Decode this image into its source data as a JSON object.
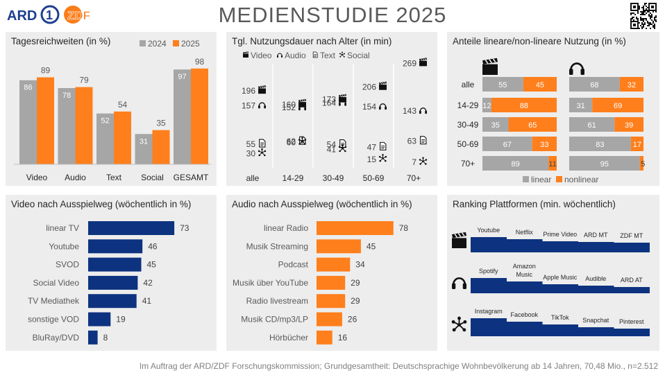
{
  "header": {
    "title": "MEDIENSTUDIE 2025",
    "logo_ard": "ARD",
    "logo_zdf": "ZDF"
  },
  "footer": "Im Auftrag der ARD/ZDF Forschungskommission; Grundgesamtheit: Deutschsprachige Wohnbevölkerung ab 14 Jahren, 70,48 Mio., n=2.512",
  "colors": {
    "orange": "#ff7f1c",
    "gray": "#a6a6a6",
    "navy": "#0d3380",
    "panel": "#ededed"
  },
  "chart_data": [
    {
      "id": "tagesreichweiten",
      "type": "bar",
      "title": "Tagesreichweiten (in %)",
      "categories": [
        "Video",
        "Audio",
        "Text",
        "Social",
        "GESAMT"
      ],
      "series": [
        {
          "name": "2024",
          "values": [
            86,
            78,
            52,
            31,
            97
          ]
        },
        {
          "name": "2025",
          "values": [
            89,
            79,
            54,
            35,
            98
          ]
        }
      ],
      "ylim": [
        0,
        100
      ],
      "legend": "top-right"
    },
    {
      "id": "nutzungsdauer",
      "type": "scatter",
      "title": "Tgl. Nutzungsdauer nach Alter (in min)",
      "categories": [
        "alle",
        "14-29",
        "30-49",
        "50-69",
        "70+"
      ],
      "series": [
        {
          "name": "Video",
          "icon": "clapperboard-icon",
          "values": [
            196,
            160,
            173,
            206,
            269
          ]
        },
        {
          "name": "Audio",
          "icon": "headphones-icon",
          "values": [
            157,
            152,
            164,
            154,
            143
          ]
        },
        {
          "name": "Text",
          "icon": "document-icon",
          "values": [
            55,
            62,
            54,
            47,
            63
          ]
        },
        {
          "name": "Social",
          "icon": "social-icon",
          "values": [
            30,
            60,
            41,
            15,
            7
          ]
        }
      ],
      "legend": "top"
    },
    {
      "id": "anteile",
      "type": "bar",
      "title": "Anteile lineare/non-lineare Nutzung (in %)",
      "categories": [
        "alle",
        "14-29",
        "30-49",
        "50-69",
        "70+"
      ],
      "groups": [
        {
          "icon": "clapperboard-icon",
          "linear": [
            55,
            12,
            35,
            67,
            89
          ],
          "nonlinear": [
            45,
            88,
            65,
            33,
            11
          ]
        },
        {
          "icon": "headphones-icon",
          "linear": [
            68,
            31,
            61,
            83,
            95
          ],
          "nonlinear": [
            32,
            69,
            39,
            17,
            5
          ]
        }
      ],
      "series_names": [
        "linear",
        "nonlinear"
      ],
      "stacked": true,
      "legend": "bottom"
    },
    {
      "id": "video_ausspielweg",
      "type": "bar",
      "title": "Video nach Ausspielweg  (wöchentlich in %)",
      "categories": [
        "linear TV",
        "Youtube",
        "SVOD",
        "Social Video",
        "TV Mediathek",
        "sonstige VOD",
        "BluRay/DVD"
      ],
      "values": [
        73,
        46,
        45,
        42,
        41,
        19,
        8
      ],
      "orientation": "horizontal"
    },
    {
      "id": "audio_ausspielweg",
      "type": "bar",
      "title": "Audio nach Ausspielweg  (wöchentlich in %)",
      "categories": [
        "linear Radio",
        "Musik Streaming",
        "Podcast",
        "Musik über YouTube",
        "Radio livestream",
        "Musik CD/mp3/LP",
        "Hörbücher"
      ],
      "values": [
        78,
        45,
        34,
        29,
        29,
        26,
        16
      ],
      "orientation": "horizontal"
    },
    {
      "id": "ranking",
      "type": "bar",
      "title": "Ranking Plattformen (min. wöchentlich)",
      "rows": [
        {
          "icon": "clapperboard-icon",
          "labels": [
            "Youtube",
            "Netflix",
            "Prime Video",
            "ARD MT",
            "ZDF MT"
          ]
        },
        {
          "icon": "headphones-icon",
          "labels": [
            "Spotify",
            "Amazon Music",
            "Apple Music",
            "Audible",
            "ARD AT"
          ]
        },
        {
          "icon": "social-network-icon",
          "labels": [
            "Instagram",
            "Facebook",
            "TikTok",
            "Snapchat",
            "Pinterest"
          ]
        }
      ]
    }
  ]
}
